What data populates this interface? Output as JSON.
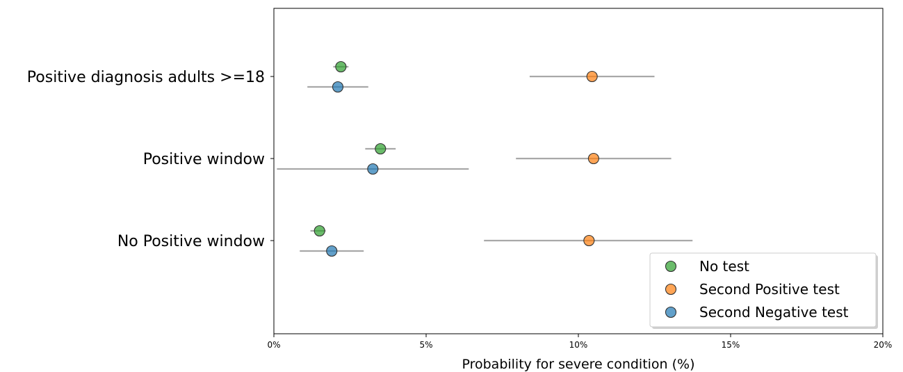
{
  "chart_data": {
    "type": "scatter",
    "title": "",
    "xlabel": "Probability for severe condition (%)",
    "ylabel": "",
    "xlim": [
      0,
      20
    ],
    "x_ticks": [
      0,
      5,
      10,
      15,
      20
    ],
    "x_tick_labels": [
      "0%",
      "5%",
      "10%",
      "15%",
      "20%"
    ],
    "grid": false,
    "legend_position": "lower-right",
    "categories": [
      "Positive diagnosis adults >=18",
      "Positive window",
      "No Positive window"
    ],
    "series": [
      {
        "name": "No test",
        "color": "#2ca02c",
        "values": [
          2.2,
          3.5,
          1.5
        ],
        "ci_low": [
          1.95,
          3.0,
          1.2
        ],
        "ci_high": [
          2.45,
          4.0,
          1.7
        ]
      },
      {
        "name": "Second Positive test",
        "color": "#ff7f0e",
        "values": [
          10.45,
          10.5,
          10.35
        ],
        "ci_low": [
          8.4,
          7.95,
          6.9
        ],
        "ci_high": [
          12.5,
          13.05,
          13.75
        ]
      },
      {
        "name": "Second Negative test",
        "color": "#1f77b4",
        "values": [
          2.1,
          3.25,
          1.9
        ],
        "ci_low": [
          1.1,
          0.1,
          0.85
        ],
        "ci_high": [
          3.1,
          6.4,
          2.95
        ]
      }
    ]
  }
}
